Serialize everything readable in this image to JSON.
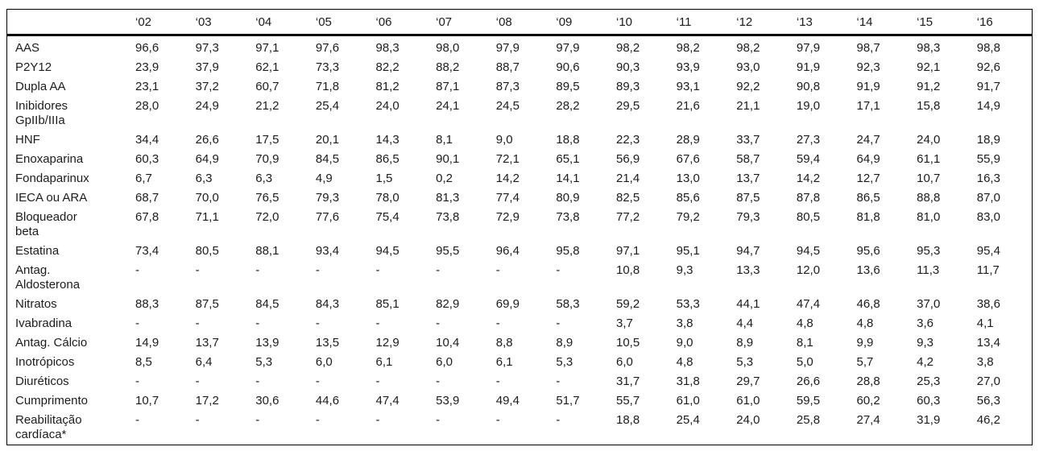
{
  "table": {
    "corner_label": "",
    "columns": [
      "‘02",
      "‘03",
      "‘04",
      "‘05",
      "‘06",
      "‘07",
      "‘08",
      "‘09",
      "‘10",
      "‘11",
      "‘12",
      "‘13",
      "‘14",
      "‘15",
      "‘16"
    ],
    "rows": [
      {
        "label": "AAS",
        "values": [
          "96,6",
          "97,3",
          "97,1",
          "97,6",
          "98,3",
          "98,0",
          "97,9",
          "97,9",
          "98,2",
          "98,2",
          "98,2",
          "97,9",
          "98,7",
          "98,3",
          "98,8"
        ]
      },
      {
        "label": "P2Y12",
        "values": [
          "23,9",
          "37,9",
          "62,1",
          "73,3",
          "82,2",
          "88,2",
          "88,7",
          "90,6",
          "90,3",
          "93,9",
          "93,0",
          "91,9",
          "92,3",
          "92,1",
          "92,6"
        ]
      },
      {
        "label": "Dupla AA",
        "values": [
          "23,1",
          "37,2",
          "60,7",
          "71,8",
          "81,2",
          "87,1",
          "87,3",
          "89,5",
          "89,3",
          "93,1",
          "92,2",
          "90,8",
          "91,9",
          "91,2",
          "91,7"
        ]
      },
      {
        "label": "Inibidores\nGpIIb/IIIa",
        "values": [
          "28,0",
          "24,9",
          "21,2",
          "25,4",
          "24,0",
          "24,1",
          "24,5",
          "28,2",
          "29,5",
          "21,6",
          "21,1",
          "19,0",
          "17,1",
          "15,8",
          "14,9"
        ]
      },
      {
        "label": "HNF",
        "values": [
          "34,4",
          "26,6",
          "17,5",
          "20,1",
          "14,3",
          "8,1",
          "9,0",
          "18,8",
          "22,3",
          "28,9",
          "33,7",
          "27,3",
          "24,7",
          "24,0",
          "18,9"
        ]
      },
      {
        "label": "Enoxaparina",
        "values": [
          "60,3",
          "64,9",
          "70,9",
          "84,5",
          "86,5",
          "90,1",
          "72,1",
          "65,1",
          "56,9",
          "67,6",
          "58,7",
          "59,4",
          "64,9",
          "61,1",
          "55,9"
        ]
      },
      {
        "label": "Fondaparinux",
        "values": [
          "6,7",
          "6,3",
          "6,3",
          "4,9",
          "1,5",
          "0,2",
          "14,2",
          "14,1",
          "21,4",
          "13,0",
          "13,7",
          "14,2",
          "12,7",
          "10,7",
          "16,3"
        ]
      },
      {
        "label": "IECA ou ARA",
        "values": [
          "68,7",
          "70,0",
          "76,5",
          "79,3",
          "78,0",
          "81,3",
          "77,4",
          "80,9",
          "82,5",
          "85,6",
          "87,5",
          "87,8",
          "86,5",
          "88,8",
          "87,0"
        ]
      },
      {
        "label": "Bloqueador\nbeta",
        "values": [
          "67,8",
          "71,1",
          "72,0",
          "77,6",
          "75,4",
          "73,8",
          "72,9",
          "73,8",
          "77,2",
          "79,2",
          "79,3",
          "80,5",
          "81,8",
          "81,0",
          "83,0"
        ]
      },
      {
        "label": "Estatina",
        "values": [
          "73,4",
          "80,5",
          "88,1",
          "93,4",
          "94,5",
          "95,5",
          "96,4",
          "95,8",
          "97,1",
          "95,1",
          "94,7",
          "94,5",
          "95,6",
          "95,3",
          "95,4"
        ]
      },
      {
        "label": "Antag.\nAldosterona",
        "values": [
          "-",
          "-",
          "-",
          "-",
          "-",
          "-",
          "-",
          "-",
          "10,8",
          "9,3",
          "13,3",
          "12,0",
          "13,6",
          "11,3",
          "11,7"
        ]
      },
      {
        "label": "Nitratos",
        "values": [
          "88,3",
          "87,5",
          "84,5",
          "84,3",
          "85,1",
          "82,9",
          "69,9",
          "58,3",
          "59,2",
          "53,3",
          "44,1",
          "47,4",
          "46,8",
          "37,0",
          "38,6"
        ]
      },
      {
        "label": "Ivabradina",
        "values": [
          "-",
          "-",
          "-",
          "-",
          "-",
          "-",
          "-",
          "-",
          "3,7",
          "3,8",
          "4,4",
          "4,8",
          "4,8",
          "3,6",
          "4,1"
        ]
      },
      {
        "label": "Antag. Cálcio",
        "values": [
          "14,9",
          "13,7",
          "13,9",
          "13,5",
          "12,9",
          "10,4",
          "8,8",
          "8,9",
          "10,5",
          "9,0",
          "8,9",
          "8,1",
          "9,9",
          "9,3",
          "13,4"
        ]
      },
      {
        "label": "Inotrópicos",
        "values": [
          "8,5",
          "6,4",
          "5,3",
          "6,0",
          "6,1",
          "6,0",
          "6,1",
          "5,3",
          "6,0",
          "4,8",
          "5,3",
          "5,0",
          "5,7",
          "4,2",
          "3,8"
        ]
      },
      {
        "label": "Diuréticos",
        "values": [
          "-",
          "-",
          "-",
          "-",
          "-",
          "-",
          "-",
          "-",
          "31,7",
          "31,8",
          "29,7",
          "26,6",
          "28,8",
          "25,3",
          "27,0"
        ]
      },
      {
        "label": "Cumprimento",
        "values": [
          "10,7",
          "17,2",
          "30,6",
          "44,6",
          "47,4",
          "53,9",
          "49,4",
          "51,7",
          "55,7",
          "61,0",
          "61,0",
          "59,5",
          "60,2",
          "60,3",
          "56,3"
        ]
      },
      {
        "label": "Reabilitação\ncardíaca*",
        "values": [
          "-",
          "-",
          "-",
          "-",
          "-",
          "-",
          "-",
          "-",
          "18,8",
          "25,4",
          "24,0",
          "25,8",
          "27,4",
          "31,9",
          "46,2"
        ]
      }
    ]
  },
  "chart_data": {
    "type": "table",
    "title": "",
    "x": [
      "'02",
      "'03",
      "'04",
      "'05",
      "'06",
      "'07",
      "'08",
      "'09",
      "'10",
      "'11",
      "'12",
      "'13",
      "'14",
      "'15",
      "'16"
    ],
    "series": [
      {
        "name": "AAS",
        "values": [
          96.6,
          97.3,
          97.1,
          97.6,
          98.3,
          98.0,
          97.9,
          97.9,
          98.2,
          98.2,
          98.2,
          97.9,
          98.7,
          98.3,
          98.8
        ]
      },
      {
        "name": "P2Y12",
        "values": [
          23.9,
          37.9,
          62.1,
          73.3,
          82.2,
          88.2,
          88.7,
          90.6,
          90.3,
          93.9,
          93.0,
          91.9,
          92.3,
          92.1,
          92.6
        ]
      },
      {
        "name": "Dupla AA",
        "values": [
          23.1,
          37.2,
          60.7,
          71.8,
          81.2,
          87.1,
          87.3,
          89.5,
          89.3,
          93.1,
          92.2,
          90.8,
          91.9,
          91.2,
          91.7
        ]
      },
      {
        "name": "Inibidores GpIIb/IIIa",
        "values": [
          28.0,
          24.9,
          21.2,
          25.4,
          24.0,
          24.1,
          24.5,
          28.2,
          29.5,
          21.6,
          21.1,
          19.0,
          17.1,
          15.8,
          14.9
        ]
      },
      {
        "name": "HNF",
        "values": [
          34.4,
          26.6,
          17.5,
          20.1,
          14.3,
          8.1,
          9.0,
          18.8,
          22.3,
          28.9,
          33.7,
          27.3,
          24.7,
          24.0,
          18.9
        ]
      },
      {
        "name": "Enoxaparina",
        "values": [
          60.3,
          64.9,
          70.9,
          84.5,
          86.5,
          90.1,
          72.1,
          65.1,
          56.9,
          67.6,
          58.7,
          59.4,
          64.9,
          61.1,
          55.9
        ]
      },
      {
        "name": "Fondaparinux",
        "values": [
          6.7,
          6.3,
          6.3,
          4.9,
          1.5,
          0.2,
          14.2,
          14.1,
          21.4,
          13.0,
          13.7,
          14.2,
          12.7,
          10.7,
          16.3
        ]
      },
      {
        "name": "IECA ou ARA",
        "values": [
          68.7,
          70.0,
          76.5,
          79.3,
          78.0,
          81.3,
          77.4,
          80.9,
          82.5,
          85.6,
          87.5,
          87.8,
          86.5,
          88.8,
          87.0
        ]
      },
      {
        "name": "Bloqueador beta",
        "values": [
          67.8,
          71.1,
          72.0,
          77.6,
          75.4,
          73.8,
          72.9,
          73.8,
          77.2,
          79.2,
          79.3,
          80.5,
          81.8,
          81.0,
          83.0
        ]
      },
      {
        "name": "Estatina",
        "values": [
          73.4,
          80.5,
          88.1,
          93.4,
          94.5,
          95.5,
          96.4,
          95.8,
          97.1,
          95.1,
          94.7,
          94.5,
          95.6,
          95.3,
          95.4
        ]
      },
      {
        "name": "Antag. Aldosterona",
        "values": [
          null,
          null,
          null,
          null,
          null,
          null,
          null,
          null,
          10.8,
          9.3,
          13.3,
          12.0,
          13.6,
          11.3,
          11.7
        ]
      },
      {
        "name": "Nitratos",
        "values": [
          88.3,
          87.5,
          84.5,
          84.3,
          85.1,
          82.9,
          69.9,
          58.3,
          59.2,
          53.3,
          44.1,
          47.4,
          46.8,
          37.0,
          38.6
        ]
      },
      {
        "name": "Ivabradina",
        "values": [
          null,
          null,
          null,
          null,
          null,
          null,
          null,
          null,
          3.7,
          3.8,
          4.4,
          4.8,
          4.8,
          3.6,
          4.1
        ]
      },
      {
        "name": "Antag. Cálcio",
        "values": [
          14.9,
          13.7,
          13.9,
          13.5,
          12.9,
          10.4,
          8.8,
          8.9,
          10.5,
          9.0,
          8.9,
          8.1,
          9.9,
          9.3,
          13.4
        ]
      },
      {
        "name": "Inotrópicos",
        "values": [
          8.5,
          6.4,
          5.3,
          6.0,
          6.1,
          6.0,
          6.1,
          5.3,
          6.0,
          4.8,
          5.3,
          5.0,
          5.7,
          4.2,
          3.8
        ]
      },
      {
        "name": "Diuréticos",
        "values": [
          null,
          null,
          null,
          null,
          null,
          null,
          null,
          null,
          31.7,
          31.8,
          29.7,
          26.6,
          28.8,
          25.3,
          27.0
        ]
      },
      {
        "name": "Cumprimento",
        "values": [
          10.7,
          17.2,
          30.6,
          44.6,
          47.4,
          53.9,
          49.4,
          51.7,
          55.7,
          61.0,
          61.0,
          59.5,
          60.2,
          60.3,
          56.3
        ]
      },
      {
        "name": "Reabilitação cardíaca*",
        "values": [
          null,
          null,
          null,
          null,
          null,
          null,
          null,
          null,
          18.8,
          25.4,
          24.0,
          25.8,
          27.4,
          31.9,
          46.2
        ]
      }
    ],
    "missing_value_marker": "-"
  }
}
